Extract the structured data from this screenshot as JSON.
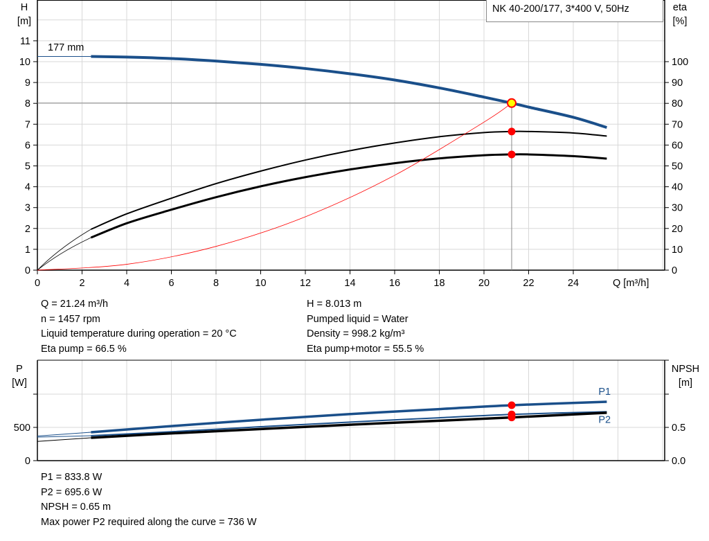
{
  "title": "NK 40-200/177, 3*400 V, 50Hz",
  "chart_data": [
    {
      "type": "line",
      "name_label": "177 mm",
      "xlabel": "Q [m³/h]",
      "ylabel": [
        "H",
        "[m]"
      ],
      "y2label": [
        "eta",
        "[%]"
      ],
      "xlim": [
        0,
        28
      ],
      "ylim": [
        0,
        13
      ],
      "y2lim": [
        0,
        130
      ],
      "grid": true,
      "xticks": [
        0,
        2,
        4,
        6,
        8,
        10,
        12,
        14,
        16,
        18,
        20,
        22,
        24
      ],
      "yticks": [
        0,
        1,
        2,
        3,
        4,
        5,
        6,
        7,
        8,
        9,
        10,
        11
      ],
      "y2ticks": [
        0,
        10,
        20,
        30,
        40,
        50,
        60,
        70,
        80,
        90,
        100
      ],
      "series": [
        {
          "id": "head",
          "color": "#1a4f8a",
          "axis": "y",
          "points": [
            [
              2.4,
              10.25
            ],
            [
              4,
              10.22
            ],
            [
              6,
              10.15
            ],
            [
              8,
              10.03
            ],
            [
              10,
              9.87
            ],
            [
              12,
              9.67
            ],
            [
              14,
              9.42
            ],
            [
              16,
              9.12
            ],
            [
              18,
              8.74
            ],
            [
              20,
              8.3
            ],
            [
              21.24,
              8.013
            ],
            [
              22,
              7.82
            ],
            [
              24,
              7.33
            ],
            [
              25.5,
              6.84
            ]
          ]
        },
        {
          "id": "eta-pump",
          "color": "#000000",
          "axis": "y2",
          "points": [
            [
              2.4,
              19.6
            ],
            [
              4,
              27
            ],
            [
              6,
              34.5
            ],
            [
              8,
              41.5
            ],
            [
              10,
              47.5
            ],
            [
              12,
              52.8
            ],
            [
              14,
              57.3
            ],
            [
              16,
              61
            ],
            [
              18,
              64
            ],
            [
              20,
              66
            ],
            [
              21.24,
              66.5
            ],
            [
              22,
              66.5
            ],
            [
              24,
              65.8
            ],
            [
              25.5,
              64.3
            ]
          ]
        },
        {
          "id": "eta-pump-motor",
          "color": "#000000",
          "axis": "y2",
          "points": [
            [
              2.4,
              15.6
            ],
            [
              4,
              22.5
            ],
            [
              6,
              29
            ],
            [
              8,
              35
            ],
            [
              10,
              40.2
            ],
            [
              12,
              44.6
            ],
            [
              14,
              48.3
            ],
            [
              16,
              51.3
            ],
            [
              18,
              53.6
            ],
            [
              20,
              55.1
            ],
            [
              21.24,
              55.5
            ],
            [
              22,
              55.5
            ],
            [
              24,
              54.7
            ],
            [
              25.5,
              53.5
            ]
          ]
        },
        {
          "id": "system-curve",
          "color": "#ff0000",
          "axis": "y",
          "points": [
            [
              0,
              0
            ],
            [
              4,
              0.28
            ],
            [
              8,
              1.14
            ],
            [
              12,
              2.56
            ],
            [
              16,
              4.55
            ],
            [
              20,
              7.1
            ],
            [
              21.24,
              8.013
            ]
          ]
        }
      ],
      "operating_point": {
        "Q": 21.24,
        "H": 8.013,
        "eta_pump": 66.5,
        "eta_pump_motor": 55.5
      }
    },
    {
      "type": "line",
      "ylabel": [
        "P",
        "[W]"
      ],
      "y2label": [
        "NPSH",
        "[m]"
      ],
      "xlim": [
        0,
        28
      ],
      "ylim": [
        0,
        1500
      ],
      "y2lim": [
        0,
        1.5
      ],
      "grid": true,
      "yticks": [
        {
          "v": 0,
          "label": "0"
        },
        {
          "v": 500,
          "label": "500"
        },
        {
          "v": 1000,
          "label": ""
        }
      ],
      "y2ticks": [
        {
          "v": 0,
          "label": "0.0"
        },
        {
          "v": 0.5,
          "label": "0.5"
        },
        {
          "v": 1.0,
          "label": ""
        }
      ],
      "series": [
        {
          "id": "P1",
          "name": "P1",
          "color": "#1a4f8a",
          "axis": "y",
          "points": [
            [
              0,
              370
            ],
            [
              2.4,
              427
            ],
            [
              6,
              520
            ],
            [
              10,
              615
            ],
            [
              14,
              700
            ],
            [
              18,
              775
            ],
            [
              21.24,
              833.8
            ],
            [
              25.5,
              885
            ]
          ]
        },
        {
          "id": "P2",
          "name": "P2",
          "color": "#1a4f8a",
          "axis": "y",
          "points": [
            [
              0,
              354
            ],
            [
              2.4,
              375
            ],
            [
              6,
              435
            ],
            [
              10,
              510
            ],
            [
              14,
              580
            ],
            [
              18,
              645
            ],
            [
              21.24,
              695.6
            ],
            [
              25.5,
              736
            ]
          ]
        },
        {
          "id": "NPSH",
          "color": "#000000",
          "axis": "y2",
          "points": [
            [
              0,
              0.29
            ],
            [
              2.4,
              0.344
            ],
            [
              6,
              0.41
            ],
            [
              10,
              0.475
            ],
            [
              14,
              0.54
            ],
            [
              18,
              0.6
            ],
            [
              21.24,
              0.65
            ],
            [
              25.5,
              0.72
            ]
          ]
        }
      ]
    }
  ],
  "info_top_left": [
    "Q = 21.24 m³/h",
    "n = 1457 rpm",
    "Liquid temperature during operation = 20 °C",
    "Eta pump = 66.5 %"
  ],
  "info_top_right": [
    "H = 8.013 m",
    "Pumped liquid = Water",
    "Density = 998.2 kg/m³",
    "Eta pump+motor = 55.5 %"
  ],
  "info_bottom": [
    "P1 = 833.8 W",
    "P2 = 695.6 W",
    "NPSH = 0.65 m",
    "Max power P2 required along the curve = 736 W"
  ]
}
